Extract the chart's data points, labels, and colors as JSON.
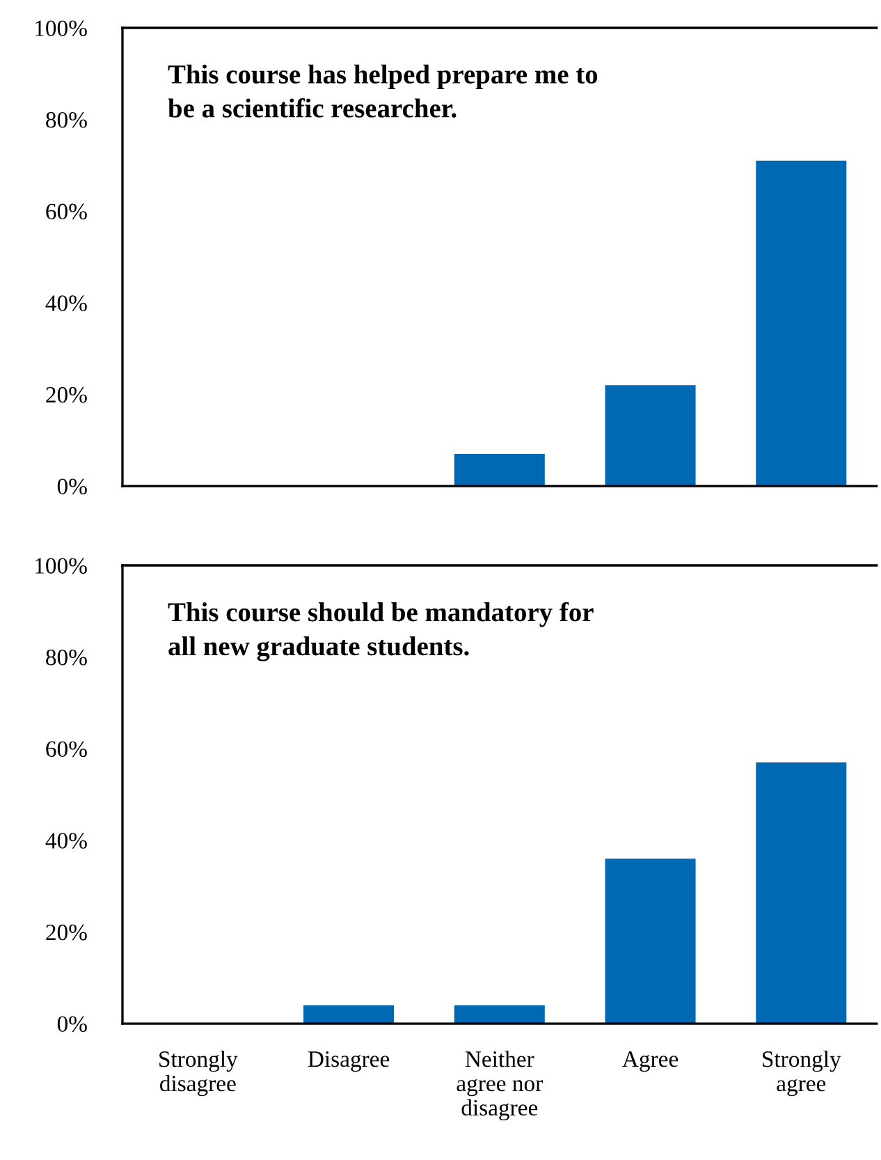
{
  "chart_data": [
    {
      "type": "bar",
      "title": "This course has helped prepare me to\nbe a scientific researcher.",
      "categories": [
        null,
        null,
        null,
        null,
        null
      ],
      "values": [
        0,
        0,
        7,
        22,
        71
      ],
      "color": "#0069b4",
      "ylim": [
        0,
        100
      ],
      "yticks": [
        {
          "value": 0,
          "label": "0%"
        },
        {
          "value": 20,
          "label": "20%"
        },
        {
          "value": 40,
          "label": "40%"
        },
        {
          "value": 60,
          "label": "60%"
        },
        {
          "value": 80,
          "label": "80%"
        },
        {
          "value": 100,
          "label": "100%"
        }
      ],
      "grid": false,
      "legend": false
    },
    {
      "type": "bar",
      "title": "This course should be mandatory for\nall new graduate students.",
      "categories": [
        "Strongly\ndisagree",
        "Disagree",
        "Neither\nagree nor\ndisagree",
        "Agree",
        "Strongly\nagree"
      ],
      "values": [
        0,
        4,
        4,
        36,
        57
      ],
      "color": "#0069b4",
      "ylim": [
        0,
        100
      ],
      "yticks": [
        {
          "value": 0,
          "label": "0%"
        },
        {
          "value": 20,
          "label": "20%"
        },
        {
          "value": 40,
          "label": "40%"
        },
        {
          "value": 60,
          "label": "60%"
        },
        {
          "value": 80,
          "label": "80%"
        },
        {
          "value": 100,
          "label": "100%"
        }
      ],
      "grid": false,
      "legend": false
    }
  ]
}
